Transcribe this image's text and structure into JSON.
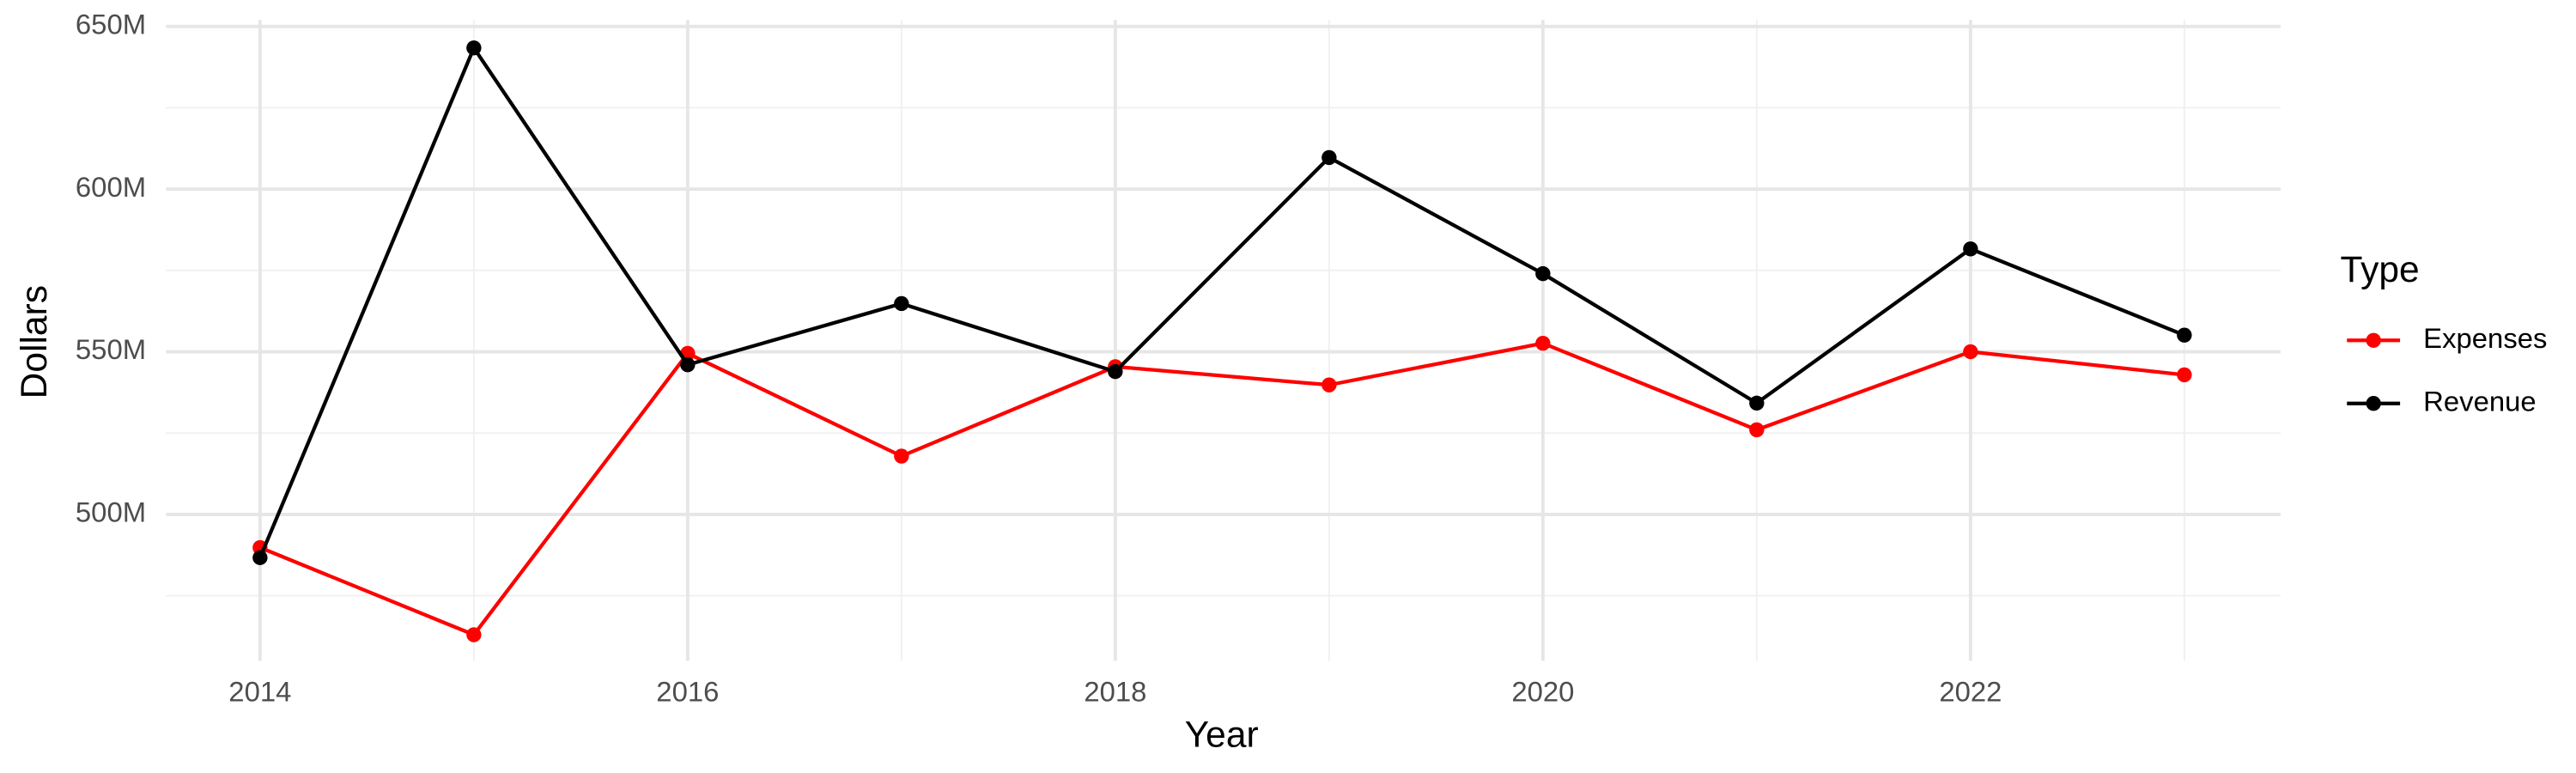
{
  "chart_data": {
    "type": "line",
    "x_label": "Year",
    "y_label": "Dollars",
    "legend_title": "Type",
    "x": [
      2014,
      2015,
      2016,
      2017,
      2018,
      2019,
      2020,
      2021,
      2022,
      2023
    ],
    "series": [
      {
        "name": "Expenses",
        "color": "#ff0000",
        "values": [
          489.8,
          463,
          549.5,
          517.9,
          545.4,
          539.8,
          552.6,
          526,
          550,
          542.9
        ]
      },
      {
        "name": "Revenue",
        "color": "#000000",
        "values": [
          486.7,
          643.4,
          546,
          564.8,
          543.9,
          609.7,
          574,
          534.2,
          581.6,
          555.1
        ]
      }
    ],
    "xlim": [
      2013.56,
      2023.45
    ],
    "xticks": [
      2014,
      2016,
      2018,
      2020,
      2022
    ],
    "ylim": [
      455,
      652
    ],
    "yticks": [
      {
        "value": 500,
        "label": "500M"
      },
      {
        "value": 550,
        "label": "550M"
      },
      {
        "value": 600,
        "label": "600M"
      },
      {
        "value": 650,
        "label": "650M"
      }
    ],
    "grid": true,
    "legend": "right"
  }
}
